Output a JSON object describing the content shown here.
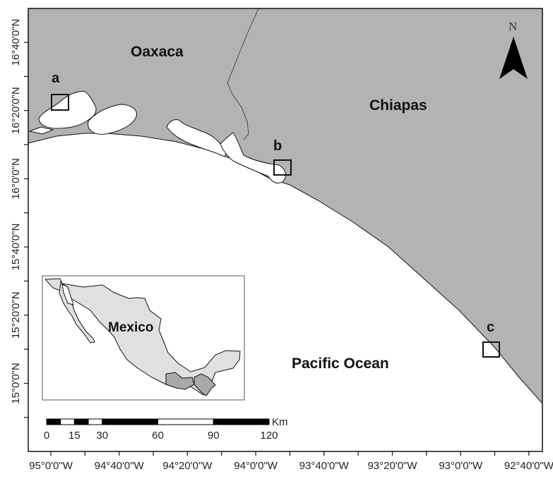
{
  "map": {
    "colors": {
      "land": "#b3b3b3",
      "water": "#ffffff",
      "inset_country": "#e0e0e0",
      "inset_states": "#a9a9a9",
      "outline": "#111111"
    },
    "labels": {
      "oaxaca": "Oaxaca",
      "chiapas": "Chiapas",
      "ocean": "Pacific Ocean",
      "site_a": "a",
      "site_b": "b",
      "site_c": "c",
      "north": "N"
    },
    "inset": {
      "label": "Mexico"
    },
    "scale_bar": {
      "unit": "Km",
      "tick_labels": [
        "0",
        "15",
        "30",
        "60",
        "90",
        "120"
      ],
      "tick_values": [
        0,
        15,
        30,
        60,
        90,
        120
      ],
      "segments_km": [
        0,
        7.5,
        15,
        22.5,
        30,
        60,
        90,
        120
      ]
    },
    "x_axis": {
      "labels": [
        "95°0'0\"W",
        "94°40'0\"W",
        "94°20'0\"W",
        "94°0'0\"W",
        "93°40'0\"W",
        "93°20'0\"W",
        "93°0'0\"W",
        "92°40'0\"W"
      ],
      "values": [
        -95.0,
        -94.6667,
        -94.3333,
        -94.0,
        -93.6667,
        -93.3333,
        -93.0,
        -92.6667
      ]
    },
    "y_axis": {
      "labels": [
        "16°40'0\"N",
        "16°20'0\"N",
        "16°0'0\"N",
        "15°40'0\"N",
        "15°20'0\"N",
        "15°0'0\"N"
      ],
      "values": [
        16.6667,
        16.3333,
        16.0,
        15.6667,
        15.3333,
        15.0
      ]
    }
  }
}
